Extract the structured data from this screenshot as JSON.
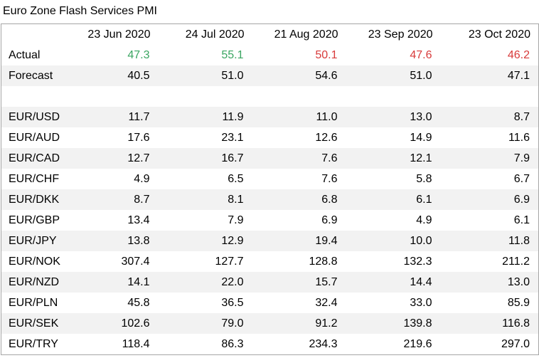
{
  "title": "Euro Zone Flash Services PMI",
  "colors": {
    "beat": "#3aa561",
    "miss": "#d83a3a",
    "row_shade": "#f2f2f2",
    "border": "#a6a6a6"
  },
  "columns": [
    "23 Jun 2020",
    "24 Jul 2020",
    "21 Aug 2020",
    "23 Sep 2020",
    "23 Oct 2020"
  ],
  "actual": {
    "label": "Actual",
    "values": [
      "47.3",
      "55.1",
      "50.1",
      "47.6",
      "46.2"
    ],
    "status": [
      "beat",
      "beat",
      "miss",
      "miss",
      "miss"
    ]
  },
  "forecast": {
    "label": "Forecast",
    "values": [
      "40.5",
      "51.0",
      "54.6",
      "51.0",
      "47.1"
    ]
  },
  "pairs": [
    {
      "label": "EUR/USD",
      "values": [
        "11.7",
        "11.9",
        "11.0",
        "13.0",
        "8.7"
      ]
    },
    {
      "label": "EUR/AUD",
      "values": [
        "17.6",
        "23.1",
        "12.6",
        "14.9",
        "11.6"
      ]
    },
    {
      "label": "EUR/CAD",
      "values": [
        "12.7",
        "16.7",
        "7.6",
        "12.1",
        "7.9"
      ]
    },
    {
      "label": "EUR/CHF",
      "values": [
        "4.9",
        "6.5",
        "7.6",
        "5.8",
        "6.7"
      ]
    },
    {
      "label": "EUR/DKK",
      "values": [
        "8.7",
        "8.1",
        "6.8",
        "6.1",
        "6.9"
      ]
    },
    {
      "label": "EUR/GBP",
      "values": [
        "13.4",
        "7.9",
        "6.9",
        "4.9",
        "6.1"
      ]
    },
    {
      "label": "EUR/JPY",
      "values": [
        "13.8",
        "12.9",
        "19.4",
        "10.0",
        "11.8"
      ]
    },
    {
      "label": "EUR/NOK",
      "values": [
        "307.4",
        "127.7",
        "128.8",
        "132.3",
        "211.2"
      ]
    },
    {
      "label": "EUR/NZD",
      "values": [
        "14.1",
        "22.0",
        "15.7",
        "14.4",
        "13.0"
      ]
    },
    {
      "label": "EUR/PLN",
      "values": [
        "45.8",
        "36.5",
        "32.4",
        "33.0",
        "85.9"
      ]
    },
    {
      "label": "EUR/SEK",
      "values": [
        "102.6",
        "79.0",
        "91.2",
        "139.8",
        "116.8"
      ]
    },
    {
      "label": "EUR/TRY",
      "values": [
        "118.4",
        "86.3",
        "234.3",
        "219.6",
        "297.0"
      ]
    }
  ]
}
